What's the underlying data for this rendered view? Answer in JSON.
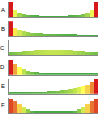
{
  "chart_data": [
    {
      "type": "bar",
      "title": "A",
      "tick_labels": false,
      "x": [
        0,
        1,
        2,
        3,
        4,
        5,
        6,
        7,
        8,
        9,
        10,
        11,
        12,
        13,
        14,
        15,
        16,
        17,
        18,
        19,
        20
      ],
      "values": [
        1.0,
        0.45,
        0.3,
        0.22,
        0.17,
        0.14,
        0.12,
        0.1,
        0.1,
        0.1,
        0.1,
        0.1,
        0.1,
        0.1,
        0.12,
        0.14,
        0.17,
        0.22,
        0.3,
        0.45,
        1.0
      ],
      "xlim": [
        -0.5,
        20.5
      ],
      "ylim": [
        0,
        1
      ]
    },
    {
      "type": "bar",
      "title": "B",
      "tick_labels": false,
      "x": [
        0,
        1,
        2,
        3,
        4,
        5,
        6,
        7,
        8,
        9,
        10,
        11,
        12,
        13,
        14,
        15,
        16,
        17,
        18,
        19,
        20
      ],
      "values": [
        1.0,
        0.55,
        0.4,
        0.33,
        0.28,
        0.25,
        0.22,
        0.2,
        0.18,
        0.17,
        0.16,
        0.15,
        0.14,
        0.13,
        0.12,
        0.12,
        0.11,
        0.11,
        0.1,
        0.1,
        0.1
      ],
      "xlim": [
        -0.5,
        20.5
      ],
      "ylim": [
        0,
        1
      ]
    },
    {
      "type": "bar",
      "title": "C",
      "tick_labels": false,
      "x": [
        0,
        1,
        2,
        3,
        4,
        5,
        6,
        7,
        8,
        9,
        10,
        11,
        12,
        13,
        14,
        15,
        16,
        17,
        18,
        19,
        20
      ],
      "values": [
        0.2,
        0.22,
        0.25,
        0.28,
        0.3,
        0.32,
        0.34,
        0.35,
        0.36,
        0.37,
        0.37,
        0.37,
        0.36,
        0.35,
        0.34,
        0.32,
        0.3,
        0.28,
        0.25,
        0.22,
        0.2
      ],
      "xlim": [
        -0.5,
        20.5
      ],
      "ylim": [
        0,
        1
      ]
    },
    {
      "type": "bar",
      "title": "D",
      "tick_labels": false,
      "x": [
        0,
        1,
        2,
        3,
        4,
        5,
        6,
        7,
        8,
        9,
        10,
        11,
        12,
        13,
        14,
        15,
        16,
        17,
        18,
        19,
        20
      ],
      "values": [
        1.0,
        0.7,
        0.5,
        0.35,
        0.25,
        0.2,
        0.15,
        0.12,
        0.1,
        0.1,
        0.1,
        0.1,
        0.1,
        0.1,
        0.1,
        0.1,
        0.1,
        0.1,
        0.1,
        0.1,
        0.1
      ],
      "xlim": [
        -0.5,
        20.5
      ],
      "ylim": [
        0,
        1
      ]
    },
    {
      "type": "bar",
      "title": "E",
      "tick_labels": false,
      "x": [
        0,
        1,
        2,
        3,
        4,
        5,
        6,
        7,
        8,
        9,
        10,
        11,
        12,
        13,
        14,
        15,
        16,
        17,
        18,
        19,
        20
      ],
      "values": [
        0.1,
        0.1,
        0.1,
        0.11,
        0.11,
        0.12,
        0.13,
        0.14,
        0.15,
        0.17,
        0.19,
        0.21,
        0.24,
        0.27,
        0.31,
        0.36,
        0.42,
        0.5,
        0.6,
        0.75,
        1.0
      ],
      "xlim": [
        -0.5,
        20.5
      ],
      "ylim": [
        0,
        1
      ]
    },
    {
      "type": "bar",
      "title": "F",
      "tick_labels": false,
      "x": [
        0,
        1,
        2,
        3,
        4,
        5,
        6,
        7,
        8,
        9,
        10,
        11,
        12,
        13,
        14,
        15,
        16,
        17,
        18,
        19,
        20
      ],
      "values": [
        0.9,
        0.8,
        0.6,
        0.4,
        0.25,
        0.15,
        0.1,
        0.1,
        0.1,
        0.1,
        0.1,
        0.1,
        0.1,
        0.1,
        0.1,
        0.15,
        0.25,
        0.4,
        0.6,
        0.8,
        0.9
      ],
      "xlim": [
        -0.5,
        20.5
      ],
      "ylim": [
        0,
        1
      ]
    }
  ]
}
